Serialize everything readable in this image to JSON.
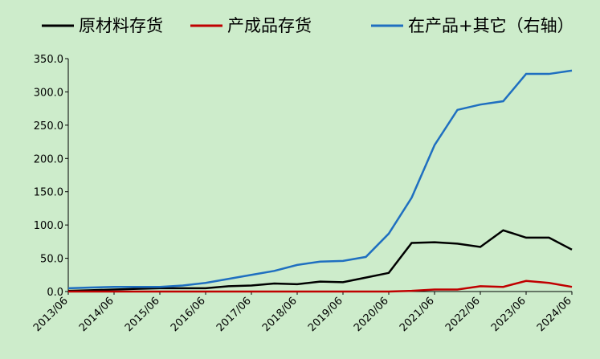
{
  "chart_data": {
    "type": "line",
    "categories": [
      "2013/06",
      null,
      "2014/06",
      null,
      "2015/06",
      null,
      "2016/06",
      null,
      "2017/06",
      null,
      "2018/06",
      null,
      "2019/06",
      null,
      "2020/06",
      null,
      "2021/06",
      null,
      "2022/06",
      null,
      "2023/06",
      null,
      "2024/06"
    ],
    "series": [
      {
        "name": "原材料存货",
        "color": "#000000",
        "values": [
          1,
          2,
          3,
          4,
          5,
          5,
          5,
          8,
          9,
          12,
          11,
          15,
          14,
          21,
          28,
          73,
          74,
          72,
          67,
          92,
          81,
          81,
          63
        ]
      },
      {
        "name": "产成品存货",
        "color": "#c00000",
        "values": [
          0,
          0,
          0,
          0,
          0,
          0,
          0,
          0,
          0,
          0,
          0,
          0,
          0,
          0,
          0,
          1,
          3,
          3,
          8,
          7,
          16,
          13,
          7
        ]
      },
      {
        "name": "在产品+其它（右轴）",
        "color": "#1f6fc0",
        "values": [
          5,
          6,
          7,
          7,
          7,
          9,
          13,
          19,
          25,
          31,
          40,
          45,
          46,
          52,
          87,
          141,
          220,
          273,
          281,
          286,
          327,
          327,
          332
        ]
      }
    ],
    "ylim": [
      0,
      350
    ],
    "yticks": [
      {
        "value": 0,
        "label": "0.0"
      },
      {
        "value": 50,
        "label": "50.0"
      },
      {
        "value": 100,
        "label": "100.0"
      },
      {
        "value": 150,
        "label": "150.0"
      },
      {
        "value": 200,
        "label": "200.0"
      },
      {
        "value": 250,
        "label": "250.0"
      },
      {
        "value": 300,
        "label": "300.0"
      },
      {
        "value": 350,
        "label": "350.0"
      }
    ]
  }
}
